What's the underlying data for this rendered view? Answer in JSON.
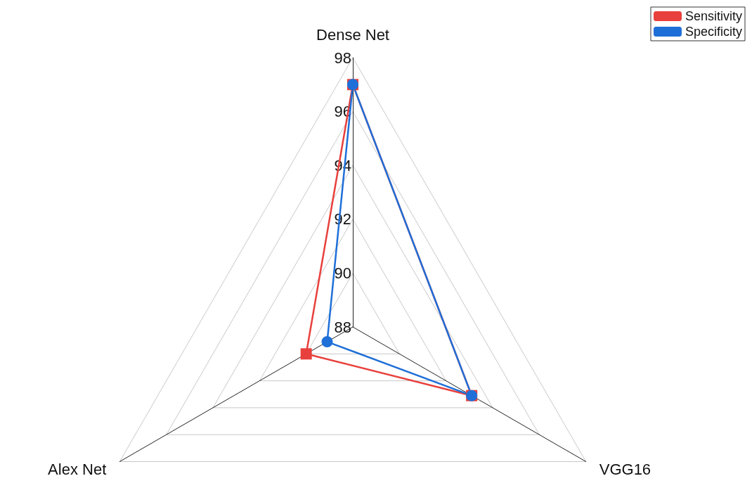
{
  "chart_data": {
    "type": "radar",
    "categories": [
      "Dense Net",
      "VGG16",
      "Alex Net"
    ],
    "series": [
      {
        "name": "Sensitivity",
        "color": "#e8403c",
        "marker": "square",
        "values": [
          97.0,
          93.1,
          90.0
        ]
      },
      {
        "name": "Specificity",
        "color": "#1f6fd8",
        "marker": "circle",
        "values": [
          97.0,
          93.1,
          89.1
        ]
      }
    ],
    "ylim": [
      88,
      98
    ],
    "yticks": [
      88,
      90,
      92,
      94,
      96,
      98
    ],
    "legend": "top right",
    "line_style": "solid"
  }
}
